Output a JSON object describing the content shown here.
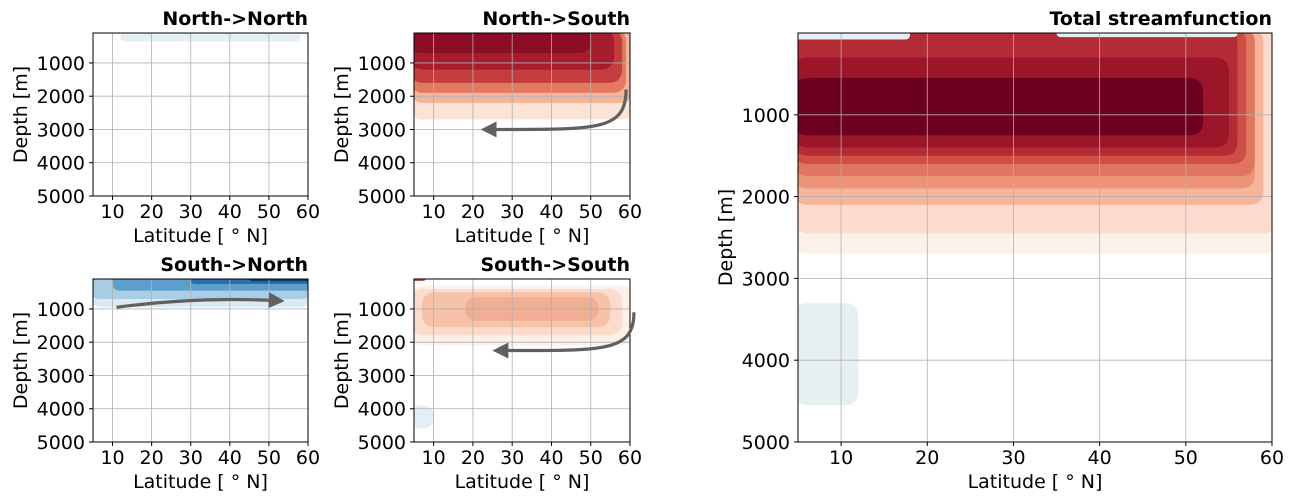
{
  "chart_data": [
    {
      "id": "nn",
      "type": "heatmap",
      "title": "North->North",
      "xlabel": "Latitude [$^\\circ$N]",
      "xlabel_display": "Latitude [ ° N]",
      "ylabel": "Depth [m]",
      "xlim": [
        5,
        60
      ],
      "ylim": [
        5000,
        100
      ],
      "xticks": [
        10,
        20,
        30,
        40,
        50,
        60
      ],
      "yticks": [
        1000,
        2000,
        3000,
        4000,
        5000
      ],
      "grid": true,
      "colormap": "RdBu_r",
      "arrow": null,
      "blobs": [
        {
          "lat": [
            12,
            58
          ],
          "depth": [
            120,
            350
          ],
          "color": "#e3eef5"
        }
      ]
    },
    {
      "id": "ns",
      "type": "heatmap",
      "title": "North->South",
      "xlabel": "Latitude [$^\\circ$N]",
      "xlabel_display": "Latitude [ ° N]",
      "ylabel": "Depth [m]",
      "xlim": [
        5,
        60
      ],
      "ylim": [
        5000,
        100
      ],
      "xticks": [
        10,
        20,
        30,
        40,
        50,
        60
      ],
      "yticks": [
        1000,
        2000,
        3000,
        4000,
        5000
      ],
      "grid": true,
      "colormap": "RdBu_r",
      "arrow": {
        "from": [
          59,
          1800
        ],
        "to": [
          24,
          3000
        ],
        "direction": "southward-deep"
      },
      "blobs": [
        {
          "lat": [
            5,
            60
          ],
          "depth": [
            100,
            2700
          ],
          "color": "#fbe3d6"
        },
        {
          "lat": [
            5,
            60
          ],
          "depth": [
            100,
            2200
          ],
          "color": "#f4b49a"
        },
        {
          "lat": [
            5,
            59
          ],
          "depth": [
            100,
            1900
          ],
          "color": "#e27a62"
        },
        {
          "lat": [
            5,
            58
          ],
          "depth": [
            100,
            1600
          ],
          "color": "#c43c3c"
        },
        {
          "lat": [
            5,
            56
          ],
          "depth": [
            100,
            1200
          ],
          "color": "#a51c2d"
        },
        {
          "lat": [
            5,
            50
          ],
          "depth": [
            100,
            700
          ],
          "color": "#8c0d25"
        }
      ]
    },
    {
      "id": "sn",
      "type": "heatmap",
      "title": "South->North",
      "xlabel": "Latitude [$^\\circ$N]",
      "xlabel_display": "Latitude [ ° N]",
      "ylabel": "Depth [m]",
      "xlim": [
        5,
        60
      ],
      "ylim": [
        5000,
        100
      ],
      "xticks": [
        10,
        20,
        30,
        40,
        50,
        60
      ],
      "yticks": [
        1000,
        2000,
        3000,
        4000,
        5000
      ],
      "grid": true,
      "colormap": "RdBu_r",
      "arrow": {
        "from": [
          11,
          950
        ],
        "to": [
          52,
          750
        ],
        "direction": "northward-shallow"
      },
      "blobs": [
        {
          "lat": [
            5,
            60
          ],
          "depth": [
            100,
            950
          ],
          "color": "#dbe9f3"
        },
        {
          "lat": [
            5,
            60
          ],
          "depth": [
            100,
            700
          ],
          "color": "#a9cde4"
        },
        {
          "lat": [
            10,
            60
          ],
          "depth": [
            100,
            450
          ],
          "color": "#5b9fca"
        },
        {
          "lat": [
            30,
            60
          ],
          "depth": [
            100,
            250
          ],
          "color": "#2a6fad"
        },
        {
          "lat": [
            45,
            60
          ],
          "depth": [
            100,
            170
          ],
          "color": "#0f3f75"
        }
      ]
    },
    {
      "id": "ss",
      "type": "heatmap",
      "title": "South->South",
      "xlabel": "Latitude [$^\\circ$N]",
      "xlabel_display": "Latitude [ ° N]",
      "ylabel": "Depth [m]",
      "xlim": [
        5,
        60
      ],
      "ylim": [
        5000,
        100
      ],
      "xticks": [
        10,
        20,
        30,
        40,
        50,
        60
      ],
      "yticks": [
        1000,
        2000,
        3000,
        4000,
        5000
      ],
      "grid": true,
      "colormap": "RdBu_r",
      "arrow": {
        "from": [
          61,
          1100
        ],
        "to": [
          27,
          2250
        ],
        "direction": "southward-deep"
      },
      "blobs": [
        {
          "lat": [
            5,
            60
          ],
          "depth": [
            300,
            2100
          ],
          "color": "#fdf0e9"
        },
        {
          "lat": [
            5,
            58
          ],
          "depth": [
            400,
            1800
          ],
          "color": "#fbdccc"
        },
        {
          "lat": [
            7,
            55
          ],
          "depth": [
            500,
            1550
          ],
          "color": "#f6c2a8"
        },
        {
          "lat": [
            18,
            52
          ],
          "depth": [
            650,
            1350
          ],
          "color": "#f2ae92"
        },
        {
          "lat": [
            5,
            8
          ],
          "depth": [
            100,
            160
          ],
          "color": "#c94b43"
        },
        {
          "lat": [
            5,
            10
          ],
          "depth": [
            3900,
            4600
          ],
          "color": "#e4eef4"
        }
      ]
    },
    {
      "id": "total",
      "type": "heatmap",
      "title": "Total streamfunction",
      "xlabel": "Latitude [$^\\circ$N]",
      "xlabel_display": "Latitude [ ° N]",
      "ylabel": "Depth [m]",
      "xlim": [
        5,
        60
      ],
      "ylim": [
        5000,
        0
      ],
      "xticks": [
        10,
        20,
        30,
        40,
        50,
        60
      ],
      "yticks": [
        1000,
        2000,
        3000,
        4000,
        5000
      ],
      "grid": true,
      "colormap": "RdBu_r",
      "arrow": null,
      "blobs": [
        {
          "lat": [
            5,
            60
          ],
          "depth": [
            0,
            2700
          ],
          "color": "#fdf0e9"
        },
        {
          "lat": [
            5,
            60
          ],
          "depth": [
            0,
            2450
          ],
          "color": "#fbdccc"
        },
        {
          "lat": [
            5,
            59
          ],
          "depth": [
            0,
            2100
          ],
          "color": "#f6b59a"
        },
        {
          "lat": [
            5,
            58
          ],
          "depth": [
            0,
            1900
          ],
          "color": "#ec9478"
        },
        {
          "lat": [
            5,
            58
          ],
          "depth": [
            0,
            1750
          ],
          "color": "#e07560"
        },
        {
          "lat": [
            5,
            57
          ],
          "depth": [
            0,
            1600
          ],
          "color": "#cd4f45"
        },
        {
          "lat": [
            5,
            56
          ],
          "depth": [
            0,
            1500
          ],
          "color": "#b52b35"
        },
        {
          "lat": [
            5,
            55
          ],
          "depth": [
            300,
            1400
          ],
          "color": "#9a1628"
        },
        {
          "lat": [
            5,
            52
          ],
          "depth": [
            550,
            1250
          ],
          "color": "#6d0021"
        },
        {
          "lat": [
            5,
            18
          ],
          "depth": [
            0,
            80
          ],
          "color": "#e3eef5"
        },
        {
          "lat": [
            35,
            56
          ],
          "depth": [
            0,
            50
          ],
          "color": "#e3eef5"
        },
        {
          "lat": [
            5,
            12
          ],
          "depth": [
            3300,
            4550
          ],
          "color": "#e7eff3"
        }
      ]
    }
  ]
}
